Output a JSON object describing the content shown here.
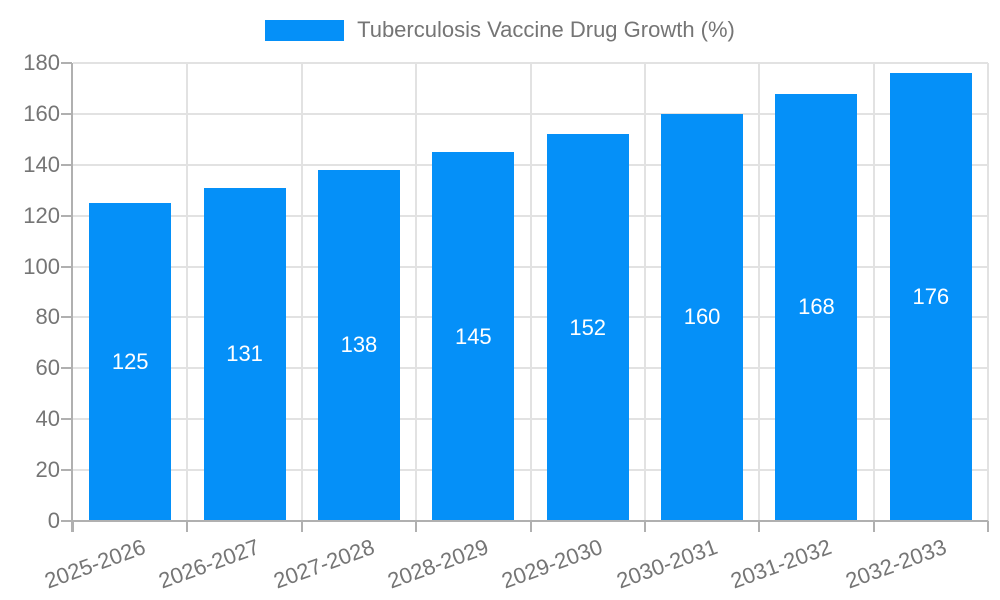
{
  "chart_data": {
    "type": "bar",
    "title": "Tuberculosis Vaccine Drug Growth (%)",
    "categories": [
      "2025-2026",
      "2026-2027",
      "2027-2028",
      "2028-2029",
      "2029-2030",
      "2030-2031",
      "2031-2032",
      "2032-2033"
    ],
    "series": [
      {
        "name": "Tuberculosis Vaccine Drug Growth (%)",
        "values": [
          125,
          131,
          138,
          145,
          152,
          160,
          168,
          176
        ]
      }
    ],
    "value_labels": [
      "125",
      "131",
      "138",
      "145",
      "152",
      "160",
      "168",
      "176"
    ],
    "xlabel": "",
    "ylabel": "",
    "ylim": [
      0,
      180
    ],
    "yticks": [
      0,
      20,
      40,
      60,
      80,
      100,
      120,
      140,
      160,
      180
    ],
    "grid": "on",
    "legend_position": "top-center",
    "x_tick_label_rotation_deg": -20,
    "colors": {
      "bar": "#0590f8",
      "text": "#757575",
      "grid": "#e2e2e2",
      "axis": "#b0b0b0",
      "value_label": "#ffffff",
      "background": "#ffffff"
    }
  }
}
